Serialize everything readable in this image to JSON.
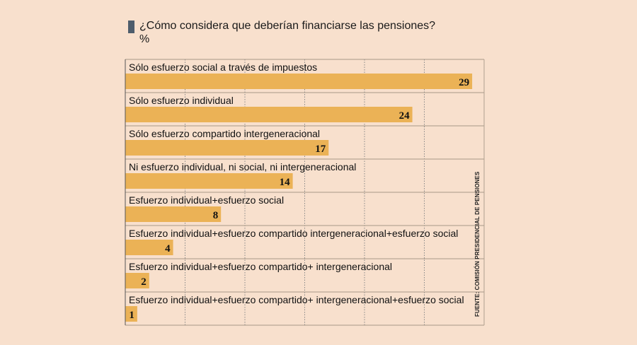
{
  "colors": {
    "background": "#f8e0cd",
    "bar": "#ebb256",
    "marker": "#4e5d6c",
    "grid": "#888888"
  },
  "chart_data": {
    "type": "bar",
    "orientation": "horizontal",
    "title": "¿Cómo considera que deberían financiarse las pensiones?",
    "subtitle": "%",
    "source": "FUENTE: COMISIÓN PRESIDENCIAL DE PENSIONES",
    "categories": [
      "Sólo esfuerzo social a través de impuestos",
      "Sólo esfuerzo individual",
      "Sólo esfuerzo compartido intergeneracional",
      "Ni esfuerzo individual, ni social, ni intergeneracional",
      "Esfuerzo individual+esfuerzo social",
      "Esfuerzo individual+esfuerzo compartido intergeneracional+esfuerzo social",
      "Esfuerzo individual+esfuerzo compartido+ intergeneracional",
      "Esfuerzo individual+esfuerzo compartido+ intergeneracional+esfuerzo social"
    ],
    "values": [
      29,
      24,
      17,
      14,
      8,
      4,
      2,
      1
    ],
    "xlim": [
      0,
      30
    ],
    "gridlines": [
      5,
      10,
      15,
      20,
      25,
      30
    ],
    "grid": true
  }
}
